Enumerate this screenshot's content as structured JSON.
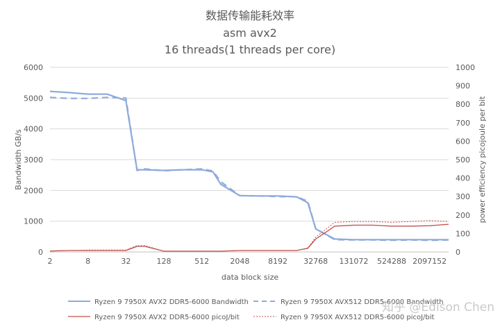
{
  "chart_data": {
    "type": "line",
    "title_lines": [
      "数据传输能耗效率",
      "asm avx2",
      "16 threads(1 threads per core)"
    ],
    "xlabel": "data block size",
    "ylabel_left": "Bandwidth GB/s",
    "ylabel_right": "power efficiency picojoule per bit",
    "x": [
      2,
      4,
      8,
      16,
      32,
      48,
      64,
      128,
      256,
      512,
      768,
      1024,
      2048,
      4096,
      8192,
      16384,
      24576,
      32768,
      65536,
      131072,
      262144,
      524288,
      1048576,
      2097152,
      4194304
    ],
    "x_tick_labels": [
      "2",
      "8",
      "32",
      "128",
      "512",
      "2048",
      "8192",
      "32768",
      "131072",
      "524288",
      "2097152"
    ],
    "left_axis": {
      "ylim": [
        0,
        6000
      ],
      "ticks": [
        "0",
        "1000",
        "2000",
        "3000",
        "4000",
        "5000",
        "6000"
      ]
    },
    "right_axis": {
      "ylim": [
        0,
        1000
      ],
      "ticks": [
        "0",
        "100",
        "200",
        "300",
        "400",
        "500",
        "600",
        "700",
        "800",
        "900",
        "1000"
      ]
    },
    "grid": "horizontal",
    "legend_position": "bottom",
    "series": [
      {
        "name": "Ryzen 9 7950X AVX2 DDR5-6000 Bandwidth",
        "axis": "left",
        "color": "#8faadc",
        "style": "solid",
        "values": [
          5220,
          5180,
          5130,
          5130,
          4920,
          2670,
          2670,
          2650,
          2670,
          2670,
          2600,
          2200,
          1830,
          1820,
          1820,
          1790,
          1600,
          750,
          420,
          400,
          400,
          400,
          400,
          400,
          400
        ]
      },
      {
        "name": "Ryzen 9 7950X AVX512 DDR5-6000 Bandwidth",
        "axis": "left",
        "color": "#8faadc",
        "style": "dashed",
        "values": [
          5020,
          4990,
          4990,
          5020,
          5000,
          2650,
          2700,
          2640,
          2670,
          2700,
          2630,
          2280,
          1830,
          1820,
          1800,
          1790,
          1650,
          750,
          400,
          390,
          390,
          380,
          390,
          380,
          390
        ]
      },
      {
        "name": "Ryzen 9 7950X AVX2 DDR5-6000 picoJ/bit",
        "axis": "right",
        "color": "#c0504d",
        "style": "solid",
        "values": [
          5,
          8,
          8,
          8,
          8,
          30,
          30,
          4,
          4,
          4,
          4,
          4,
          8,
          8,
          8,
          8,
          20,
          70,
          140,
          145,
          145,
          140,
          140,
          142,
          150
        ]
      },
      {
        "name": "Ryzen 9 7950X AVX512 DDR5-6000 picoJ/bit",
        "axis": "right",
        "color": "#c0504d",
        "style": "dotted",
        "values": [
          5,
          8,
          10,
          10,
          10,
          35,
          35,
          4,
          4,
          4,
          4,
          4,
          8,
          8,
          8,
          8,
          22,
          80,
          160,
          165,
          165,
          160,
          165,
          170,
          165
        ]
      }
    ]
  },
  "watermark": "知乎 @Edison Chen"
}
